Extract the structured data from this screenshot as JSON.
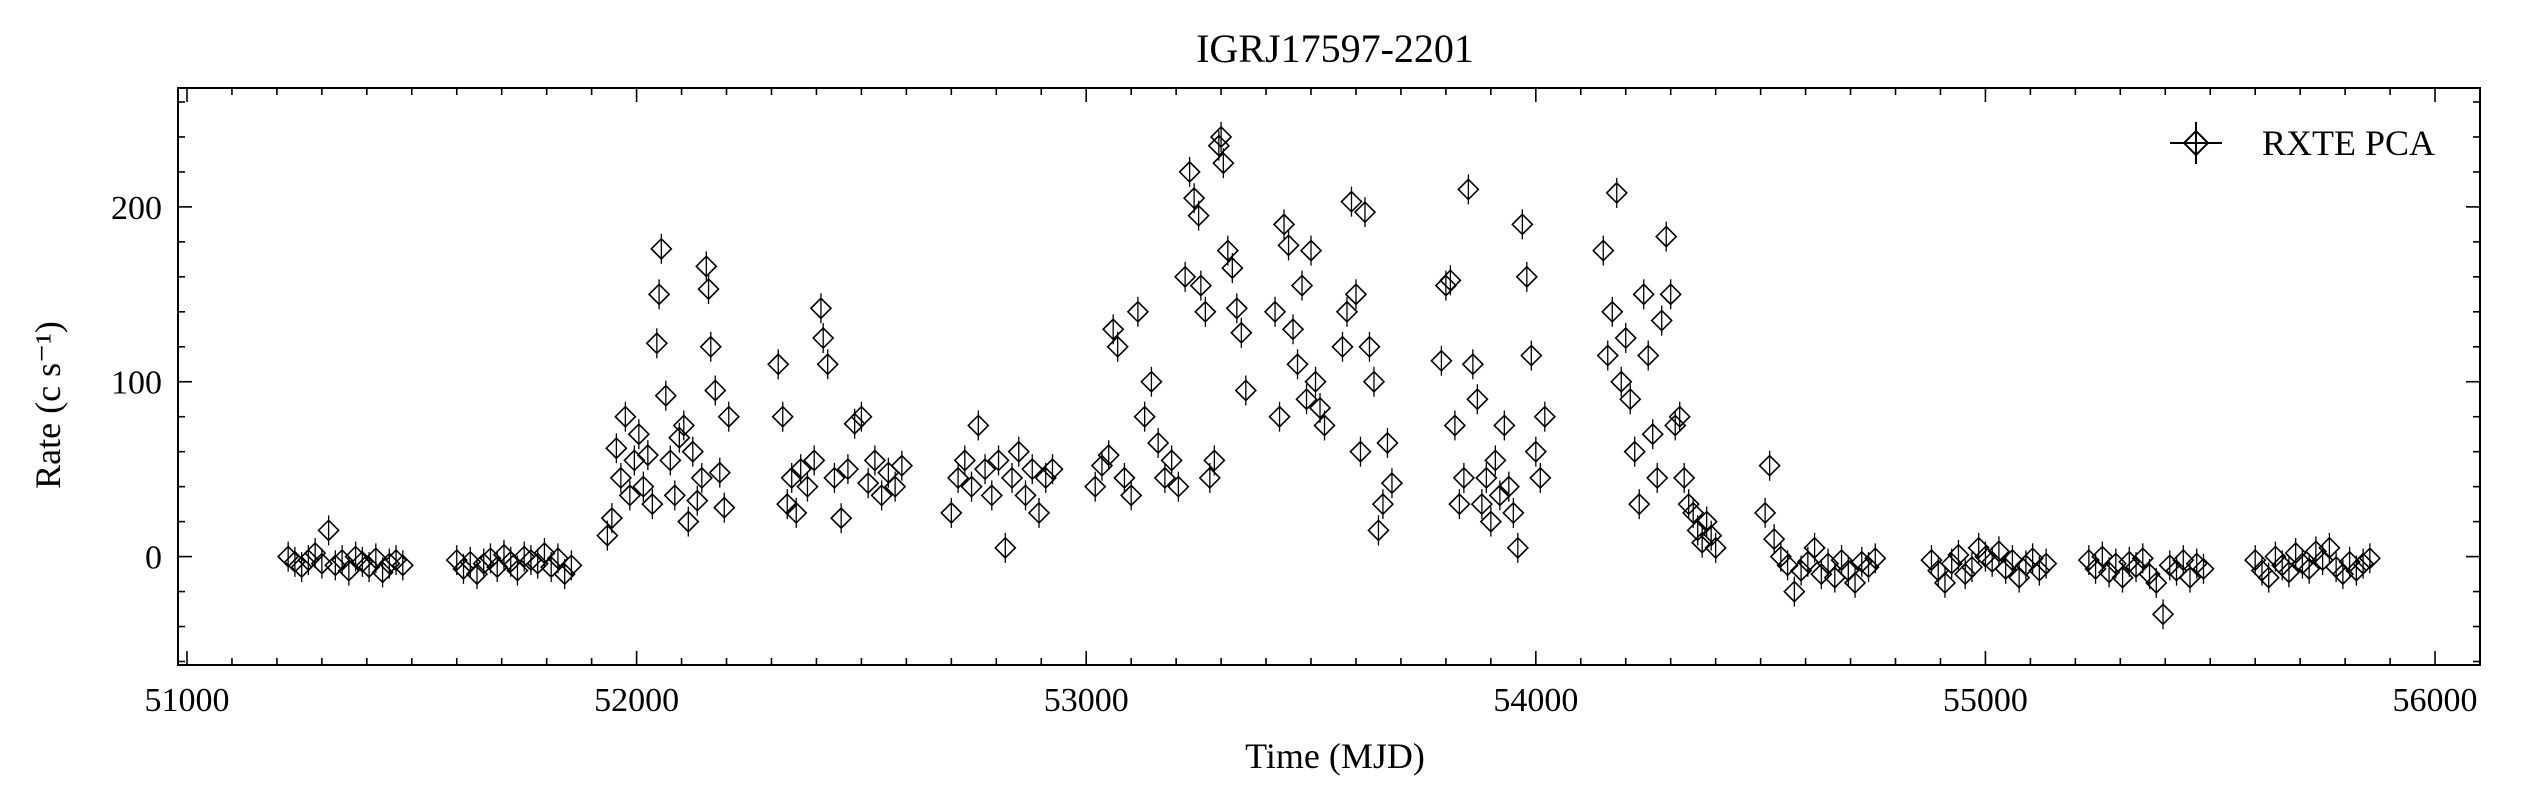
{
  "chart_data": {
    "type": "scatter",
    "title": "IGRJ17597-2201",
    "xlabel": "Time (MJD)",
    "ylabel": "Rate (c s⁻¹)",
    "xlim": [
      50980,
      56100
    ],
    "ylim": [
      -62,
      268
    ],
    "xticks": [
      51000,
      52000,
      53000,
      54000,
      55000,
      56000
    ],
    "yticks": [
      0,
      100,
      200
    ],
    "grid": false,
    "legend_position": "top-right",
    "marker": "diamond",
    "series": [
      {
        "name": "RXTE PCA",
        "points": [
          [
            51225,
            0
          ],
          [
            51240,
            -3
          ],
          [
            51255,
            -6
          ],
          [
            51270,
            -2
          ],
          [
            51285,
            2
          ],
          [
            51300,
            -4
          ],
          [
            51315,
            15
          ],
          [
            51330,
            -5
          ],
          [
            51345,
            -2
          ],
          [
            51360,
            -8
          ],
          [
            51375,
            0
          ],
          [
            51390,
            -3
          ],
          [
            51405,
            -6
          ],
          [
            51420,
            -1
          ],
          [
            51435,
            -9
          ],
          [
            51450,
            -4
          ],
          [
            51465,
            -2
          ],
          [
            51480,
            -5
          ],
          [
            51600,
            -2
          ],
          [
            51615,
            -7
          ],
          [
            51630,
            -3
          ],
          [
            51645,
            -10
          ],
          [
            51660,
            -4
          ],
          [
            51675,
            -1
          ],
          [
            51690,
            -6
          ],
          [
            51705,
            1
          ],
          [
            51720,
            -3
          ],
          [
            51735,
            -8
          ],
          [
            51750,
            0
          ],
          [
            51765,
            -2
          ],
          [
            51780,
            -4
          ],
          [
            51795,
            2
          ],
          [
            51810,
            -6
          ],
          [
            51825,
            -1
          ],
          [
            51840,
            -10
          ],
          [
            51855,
            -5
          ],
          [
            51935,
            12
          ],
          [
            51945,
            22
          ],
          [
            51955,
            62
          ],
          [
            51965,
            45
          ],
          [
            51975,
            80
          ],
          [
            51985,
            35
          ],
          [
            51995,
            55
          ],
          [
            52005,
            70
          ],
          [
            52015,
            40
          ],
          [
            52025,
            58
          ],
          [
            52035,
            30
          ],
          [
            52045,
            122
          ],
          [
            52050,
            150
          ],
          [
            52055,
            176
          ],
          [
            52065,
            92
          ],
          [
            52075,
            55
          ],
          [
            52085,
            35
          ],
          [
            52095,
            68
          ],
          [
            52105,
            75
          ],
          [
            52115,
            20
          ],
          [
            52125,
            60
          ],
          [
            52135,
            32
          ],
          [
            52145,
            45
          ],
          [
            52155,
            166
          ],
          [
            52160,
            153
          ],
          [
            52165,
            120
          ],
          [
            52175,
            95
          ],
          [
            52185,
            48
          ],
          [
            52195,
            28
          ],
          [
            52205,
            80
          ],
          [
            52315,
            110
          ],
          [
            52325,
            80
          ],
          [
            52335,
            30
          ],
          [
            52345,
            45
          ],
          [
            52355,
            25
          ],
          [
            52365,
            50
          ],
          [
            52380,
            40
          ],
          [
            52395,
            55
          ],
          [
            52410,
            142
          ],
          [
            52415,
            125
          ],
          [
            52425,
            110
          ],
          [
            52440,
            45
          ],
          [
            52455,
            22
          ],
          [
            52470,
            50
          ],
          [
            52485,
            76
          ],
          [
            52500,
            80
          ],
          [
            52515,
            42
          ],
          [
            52530,
            55
          ],
          [
            52545,
            35
          ],
          [
            52560,
            48
          ],
          [
            52575,
            40
          ],
          [
            52590,
            52
          ],
          [
            52700,
            25
          ],
          [
            52715,
            45
          ],
          [
            52730,
            55
          ],
          [
            52745,
            40
          ],
          [
            52760,
            75
          ],
          [
            52775,
            50
          ],
          [
            52790,
            35
          ],
          [
            52805,
            55
          ],
          [
            52820,
            5
          ],
          [
            52835,
            45
          ],
          [
            52850,
            60
          ],
          [
            52865,
            35
          ],
          [
            52880,
            50
          ],
          [
            52895,
            25
          ],
          [
            52910,
            45
          ],
          [
            52925,
            50
          ],
          [
            53020,
            40
          ],
          [
            53035,
            52
          ],
          [
            53050,
            58
          ],
          [
            53060,
            130
          ],
          [
            53070,
            120
          ],
          [
            53085,
            45
          ],
          [
            53100,
            35
          ],
          [
            53115,
            140
          ],
          [
            53130,
            80
          ],
          [
            53145,
            100
          ],
          [
            53160,
            65
          ],
          [
            53175,
            45
          ],
          [
            53190,
            55
          ],
          [
            53205,
            40
          ],
          [
            53220,
            160
          ],
          [
            53230,
            220
          ],
          [
            53240,
            205
          ],
          [
            53250,
            195
          ],
          [
            53255,
            155
          ],
          [
            53265,
            140
          ],
          [
            53275,
            45
          ],
          [
            53285,
            55
          ],
          [
            53295,
            235
          ],
          [
            53300,
            240
          ],
          [
            53305,
            225
          ],
          [
            53315,
            175
          ],
          [
            53325,
            165
          ],
          [
            53335,
            142
          ],
          [
            53345,
            128
          ],
          [
            53355,
            95
          ],
          [
            53420,
            140
          ],
          [
            53430,
            80
          ],
          [
            53440,
            190
          ],
          [
            53450,
            178
          ],
          [
            53460,
            130
          ],
          [
            53470,
            110
          ],
          [
            53480,
            155
          ],
          [
            53490,
            90
          ],
          [
            53500,
            175
          ],
          [
            53510,
            100
          ],
          [
            53520,
            85
          ],
          [
            53530,
            75
          ],
          [
            53570,
            120
          ],
          [
            53580,
            140
          ],
          [
            53590,
            203
          ],
          [
            53600,
            150
          ],
          [
            53610,
            60
          ],
          [
            53620,
            197
          ],
          [
            53630,
            120
          ],
          [
            53640,
            100
          ],
          [
            53650,
            15
          ],
          [
            53660,
            30
          ],
          [
            53670,
            65
          ],
          [
            53680,
            42
          ],
          [
            53790,
            112
          ],
          [
            53800,
            155
          ],
          [
            53810,
            158
          ],
          [
            53820,
            75
          ],
          [
            53830,
            30
          ],
          [
            53840,
            45
          ],
          [
            53850,
            210
          ],
          [
            53860,
            110
          ],
          [
            53870,
            90
          ],
          [
            53880,
            30
          ],
          [
            53890,
            45
          ],
          [
            53900,
            20
          ],
          [
            53910,
            55
          ],
          [
            53920,
            35
          ],
          [
            53930,
            75
          ],
          [
            53940,
            40
          ],
          [
            53950,
            25
          ],
          [
            53960,
            5
          ],
          [
            53970,
            190
          ],
          [
            53980,
            160
          ],
          [
            53990,
            115
          ],
          [
            54000,
            60
          ],
          [
            54010,
            45
          ],
          [
            54020,
            80
          ],
          [
            54150,
            175
          ],
          [
            54160,
            115
          ],
          [
            54170,
            140
          ],
          [
            54180,
            208
          ],
          [
            54190,
            100
          ],
          [
            54200,
            125
          ],
          [
            54210,
            90
          ],
          [
            54220,
            60
          ],
          [
            54230,
            30
          ],
          [
            54240,
            150
          ],
          [
            54250,
            115
          ],
          [
            54260,
            70
          ],
          [
            54270,
            45
          ],
          [
            54280,
            135
          ],
          [
            54290,
            183
          ],
          [
            54300,
            150
          ],
          [
            54310,
            75
          ],
          [
            54320,
            80
          ],
          [
            54330,
            45
          ],
          [
            54340,
            30
          ],
          [
            54350,
            25
          ],
          [
            54360,
            15
          ],
          [
            54370,
            8
          ],
          [
            54380,
            20
          ],
          [
            54390,
            12
          ],
          [
            54400,
            5
          ],
          [
            54510,
            25
          ],
          [
            54520,
            52
          ],
          [
            54530,
            10
          ],
          [
            54545,
            0
          ],
          [
            54560,
            -5
          ],
          [
            54575,
            -20
          ],
          [
            54590,
            -8
          ],
          [
            54605,
            -3
          ],
          [
            54620,
            5
          ],
          [
            54635,
            -10
          ],
          [
            54650,
            -4
          ],
          [
            54665,
            -12
          ],
          [
            54680,
            -2
          ],
          [
            54695,
            -8
          ],
          [
            54710,
            -15
          ],
          [
            54725,
            -3
          ],
          [
            54740,
            -6
          ],
          [
            54755,
            -1
          ],
          [
            54880,
            -2
          ],
          [
            54895,
            -8
          ],
          [
            54910,
            -15
          ],
          [
            54925,
            -4
          ],
          [
            54940,
            1
          ],
          [
            54955,
            -10
          ],
          [
            54970,
            -6
          ],
          [
            54985,
            5
          ],
          [
            55000,
            0
          ],
          [
            55015,
            -3
          ],
          [
            55030,
            3
          ],
          [
            55045,
            -7
          ],
          [
            55060,
            -2
          ],
          [
            55075,
            -12
          ],
          [
            55090,
            -5
          ],
          [
            55105,
            -1
          ],
          [
            55120,
            -8
          ],
          [
            55135,
            -4
          ],
          [
            55230,
            -2
          ],
          [
            55245,
            -7
          ],
          [
            55260,
            0
          ],
          [
            55275,
            -9
          ],
          [
            55290,
            -4
          ],
          [
            55305,
            -12
          ],
          [
            55320,
            -3
          ],
          [
            55335,
            -6
          ],
          [
            55350,
            -1
          ],
          [
            55365,
            -10
          ],
          [
            55380,
            -15
          ],
          [
            55395,
            -33
          ],
          [
            55410,
            -5
          ],
          [
            55425,
            -8
          ],
          [
            55440,
            -2
          ],
          [
            55455,
            -12
          ],
          [
            55470,
            -4
          ],
          [
            55485,
            -7
          ],
          [
            55600,
            -2
          ],
          [
            55615,
            -8
          ],
          [
            55630,
            -12
          ],
          [
            55645,
            0
          ],
          [
            55660,
            -5
          ],
          [
            55675,
            -9
          ],
          [
            55690,
            2
          ],
          [
            55705,
            -4
          ],
          [
            55720,
            -7
          ],
          [
            55735,
            3
          ],
          [
            55750,
            -2
          ],
          [
            55765,
            5
          ],
          [
            55780,
            -6
          ],
          [
            55795,
            -10
          ],
          [
            55810,
            -3
          ],
          [
            55825,
            -8
          ],
          [
            55840,
            -4
          ],
          [
            55855,
            -1
          ]
        ]
      }
    ]
  }
}
